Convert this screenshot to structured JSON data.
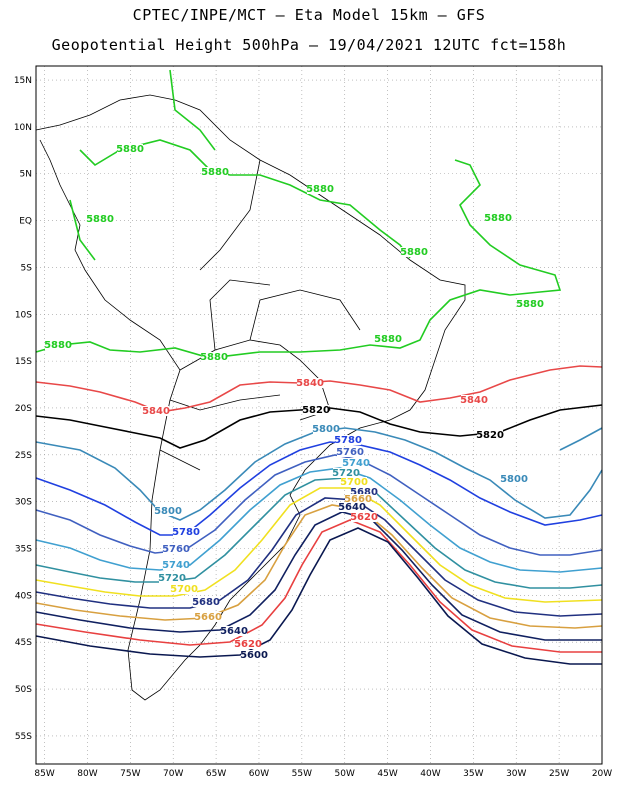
{
  "header": {
    "line1": "CPTEC/INPE/MCT –  Eta Model 15km – GFS",
    "line2": "Geopotential Height 500hPa – 19/04/2021 12UTC fct=158h"
  },
  "axes": {
    "lat_labels": [
      "15N",
      "10N",
      "5N",
      "EQ",
      "5S",
      "10S",
      "15S",
      "20S",
      "25S",
      "30S",
      "35S",
      "40S",
      "45S",
      "50S",
      "55S"
    ],
    "lat_values": [
      15,
      10,
      5,
      0,
      -5,
      -10,
      -15,
      -20,
      -25,
      -30,
      -35,
      -40,
      -45,
      -50,
      -55
    ],
    "lon_labels": [
      "85W",
      "80W",
      "75W",
      "70W",
      "65W",
      "60W",
      "55W",
      "50W",
      "45W",
      "40W",
      "35W",
      "30W",
      "25W",
      "20W"
    ],
    "lon_values": [
      -85,
      -80,
      -75,
      -70,
      -65,
      -60,
      -55,
      -50,
      -45,
      -40,
      -35,
      -30,
      -25,
      -20
    ],
    "lon_range": [
      -86,
      -20
    ],
    "lat_range": [
      -58,
      16.5
    ],
    "grid": "dotted"
  },
  "contours": [
    {
      "level": "5880",
      "color": "#22cc22"
    },
    {
      "level": "5840",
      "color": "#e84848"
    },
    {
      "level": "5820",
      "color": "#000000"
    },
    {
      "level": "5800",
      "color": "#3a8ab8"
    },
    {
      "level": "5780",
      "color": "#2040e0"
    },
    {
      "level": "5760",
      "color": "#4060c0"
    },
    {
      "level": "5740",
      "color": "#40a0d0"
    },
    {
      "level": "5720",
      "color": "#3090a0"
    },
    {
      "level": "5700",
      "color": "#f0e020"
    },
    {
      "level": "5680",
      "color": "#203080"
    },
    {
      "level": "5660",
      "color": "#d8a040"
    },
    {
      "level": "5640",
      "color": "#102060"
    },
    {
      "level": "5620",
      "color": "#e84040"
    },
    {
      "level": "5600",
      "color": "#0a1850"
    }
  ]
}
